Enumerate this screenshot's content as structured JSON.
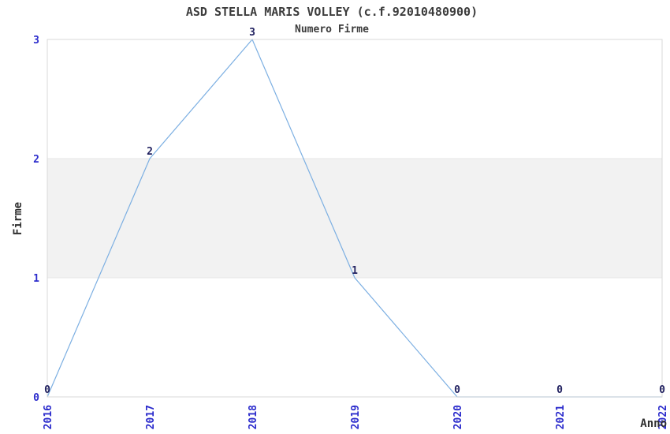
{
  "chart_data": {
    "type": "line",
    "title": "ASD STELLA MARIS VOLLEY (c.f.92010480900)",
    "subtitle": "Numero Firme",
    "xlabel": "Anno",
    "ylabel": "Firme",
    "x": [
      "2016",
      "2017",
      "2018",
      "2019",
      "2020",
      "2021",
      "2022"
    ],
    "values": [
      0,
      2,
      3,
      1,
      0,
      0,
      0
    ],
    "data_labels": [
      "0",
      "2",
      "3",
      "1",
      "0",
      "0",
      "0"
    ],
    "yticks": [
      0,
      1,
      2,
      3
    ],
    "ylim": [
      0,
      3
    ],
    "x_tick_rotation": 90,
    "grid": false,
    "legend": false,
    "band": {
      "y_from": 1,
      "y_to": 2
    },
    "colors": {
      "line": "#7cafe2",
      "tick_label": "#2b2bcc",
      "data_label": "#212160",
      "title": "#3c3c3c",
      "subtitle": "#3c3c3c",
      "axis_label": "#2f2f2f",
      "spine": "#d8d8d8",
      "band_fill": "#f2f2f2",
      "band_edge": "#e5e5e5",
      "background": "#ffffff"
    }
  }
}
